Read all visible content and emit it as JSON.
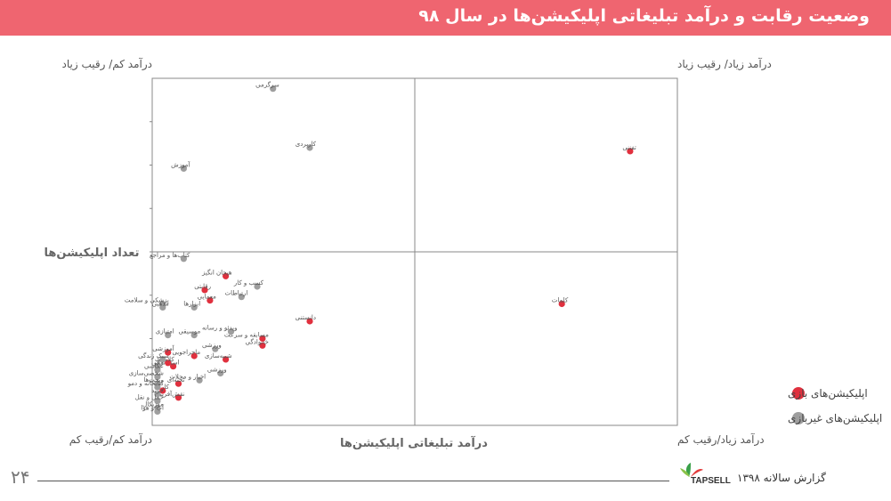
{
  "header": {
    "title": "وضعیت رقابت و درآمد تبلیغاتی اپلیکیشن‌ها در سال ۹۸"
  },
  "colors": {
    "header_bg": "#ef6570",
    "game": "#e0303e",
    "nongame": "#9e9e9e"
  },
  "chart_data": {
    "type": "scatter",
    "xlabel": "درآمد تبلیغاتی اپلیکیشن‌ها",
    "ylabel": "تعداد اپلیکیشن‌ها",
    "quadrants": {
      "top_left": "درآمد کم/ رقیب زیاد",
      "top_right": "درآمد زیاد/ رقیب زیاد",
      "bottom_left": "درآمد کم/رقیب کم",
      "bottom_right": "درآمد زیاد/رقیب کم"
    },
    "legend": {
      "position": "right",
      "items": [
        {
          "name": "اپلیکیشن‌های بازی",
          "color": "#e0303e"
        },
        {
          "name": "اپلیکیشن‌های غیربازی",
          "color": "#9e9e9e"
        }
      ]
    },
    "series": [
      {
        "name": "اپلیکیشن‌های بازی",
        "color": "#e0303e",
        "points": [
          {
            "label": "تفننی",
            "x": 0.91,
            "y": 0.79
          },
          {
            "label": "کلمات",
            "x": 0.78,
            "y": 0.35
          },
          {
            "label": "هیجان انگیز",
            "x": 0.14,
            "y": 0.43
          },
          {
            "label": "رقابتی",
            "x": 0.1,
            "y": 0.39
          },
          {
            "label": "معمایی",
            "x": 0.11,
            "y": 0.36
          },
          {
            "label": "دانستنی",
            "x": 0.3,
            "y": 0.3
          },
          {
            "label": "خانوادگی",
            "x": 0.21,
            "y": 0.23
          },
          {
            "label": "مسابقه و سرعت",
            "x": 0.21,
            "y": 0.25
          },
          {
            "label": "شبیه‌سازی",
            "x": 0.14,
            "y": 0.19
          },
          {
            "label": "ماجراجویی",
            "x": 0.08,
            "y": 0.2
          },
          {
            "label": "آموزشی",
            "x": 0.03,
            "y": 0.21
          },
          {
            "label": "استراتژی",
            "x": 0.04,
            "y": 0.17
          },
          {
            "label": "تخته‌ای",
            "x": 0.05,
            "y": 0.12
          },
          {
            "label": "نقش‌آفرینی",
            "x": 0.05,
            "y": 0.08
          },
          {
            "label": "کلاسیک",
            "x": 0.03,
            "y": 0.18
          },
          {
            "label": "کارت",
            "x": 0.02,
            "y": 0.1
          }
        ]
      },
      {
        "name": "اپلیکیشن‌های غیربازی",
        "color": "#9e9e9e",
        "points": [
          {
            "label": "سرگرمی",
            "x": 0.23,
            "y": 0.97
          },
          {
            "label": "کاربردی",
            "x": 0.3,
            "y": 0.8
          },
          {
            "label": "آموزش",
            "x": 0.06,
            "y": 0.74
          },
          {
            "label": "کتاب‌ها و مراجع",
            "x": 0.06,
            "y": 0.48
          },
          {
            "label": "کسب و کار",
            "x": 0.2,
            "y": 0.4
          },
          {
            "label": "ارتباطات",
            "x": 0.17,
            "y": 0.37
          },
          {
            "label": "پزشکی و سلامت",
            "x": 0.02,
            "y": 0.35
          },
          {
            "label": "ابزارها",
            "x": 0.08,
            "y": 0.34
          },
          {
            "label": "مذهبی",
            "x": 0.02,
            "y": 0.34
          },
          {
            "label": "ویدئو و رسانه",
            "x": 0.15,
            "y": 0.27
          },
          {
            "label": "موسیقی",
            "x": 0.08,
            "y": 0.26
          },
          {
            "label": "امتیازی",
            "x": 0.03,
            "y": 0.26
          },
          {
            "label": "ورزشی",
            "x": 0.12,
            "y": 0.22
          },
          {
            "label": "سبک زندگی",
            "x": 0.02,
            "y": 0.19
          },
          {
            "label": "مالی",
            "x": 0.01,
            "y": 0.17
          },
          {
            "label": "عکاسی",
            "x": 0.01,
            "y": 0.16
          },
          {
            "label": "شخصی‌سازی",
            "x": 0.01,
            "y": 0.14
          },
          {
            "label": "ورزشی",
            "x": 0.13,
            "y": 0.15
          },
          {
            "label": "ویجت‌ها",
            "x": 0.01,
            "y": 0.12
          },
          {
            "label": "اخبار و مجلات",
            "x": 0.09,
            "y": 0.13
          },
          {
            "label": "کتابخانه و دمو",
            "x": 0.01,
            "y": 0.11
          },
          {
            "label": "خرید",
            "x": 0.01,
            "y": 0.09
          },
          {
            "label": "حمل و نقل",
            "x": 0.01,
            "y": 0.07
          },
          {
            "label": "موزیکال",
            "x": 0.01,
            "y": 0.05
          },
          {
            "label": "آب و هوا",
            "x": 0.01,
            "y": 0.04
          }
        ]
      }
    ]
  },
  "footer": {
    "page_number": "۲۴",
    "report_label": "گزارش سالانه ۱۳۹۸",
    "logo_text": "TAPSELL"
  }
}
